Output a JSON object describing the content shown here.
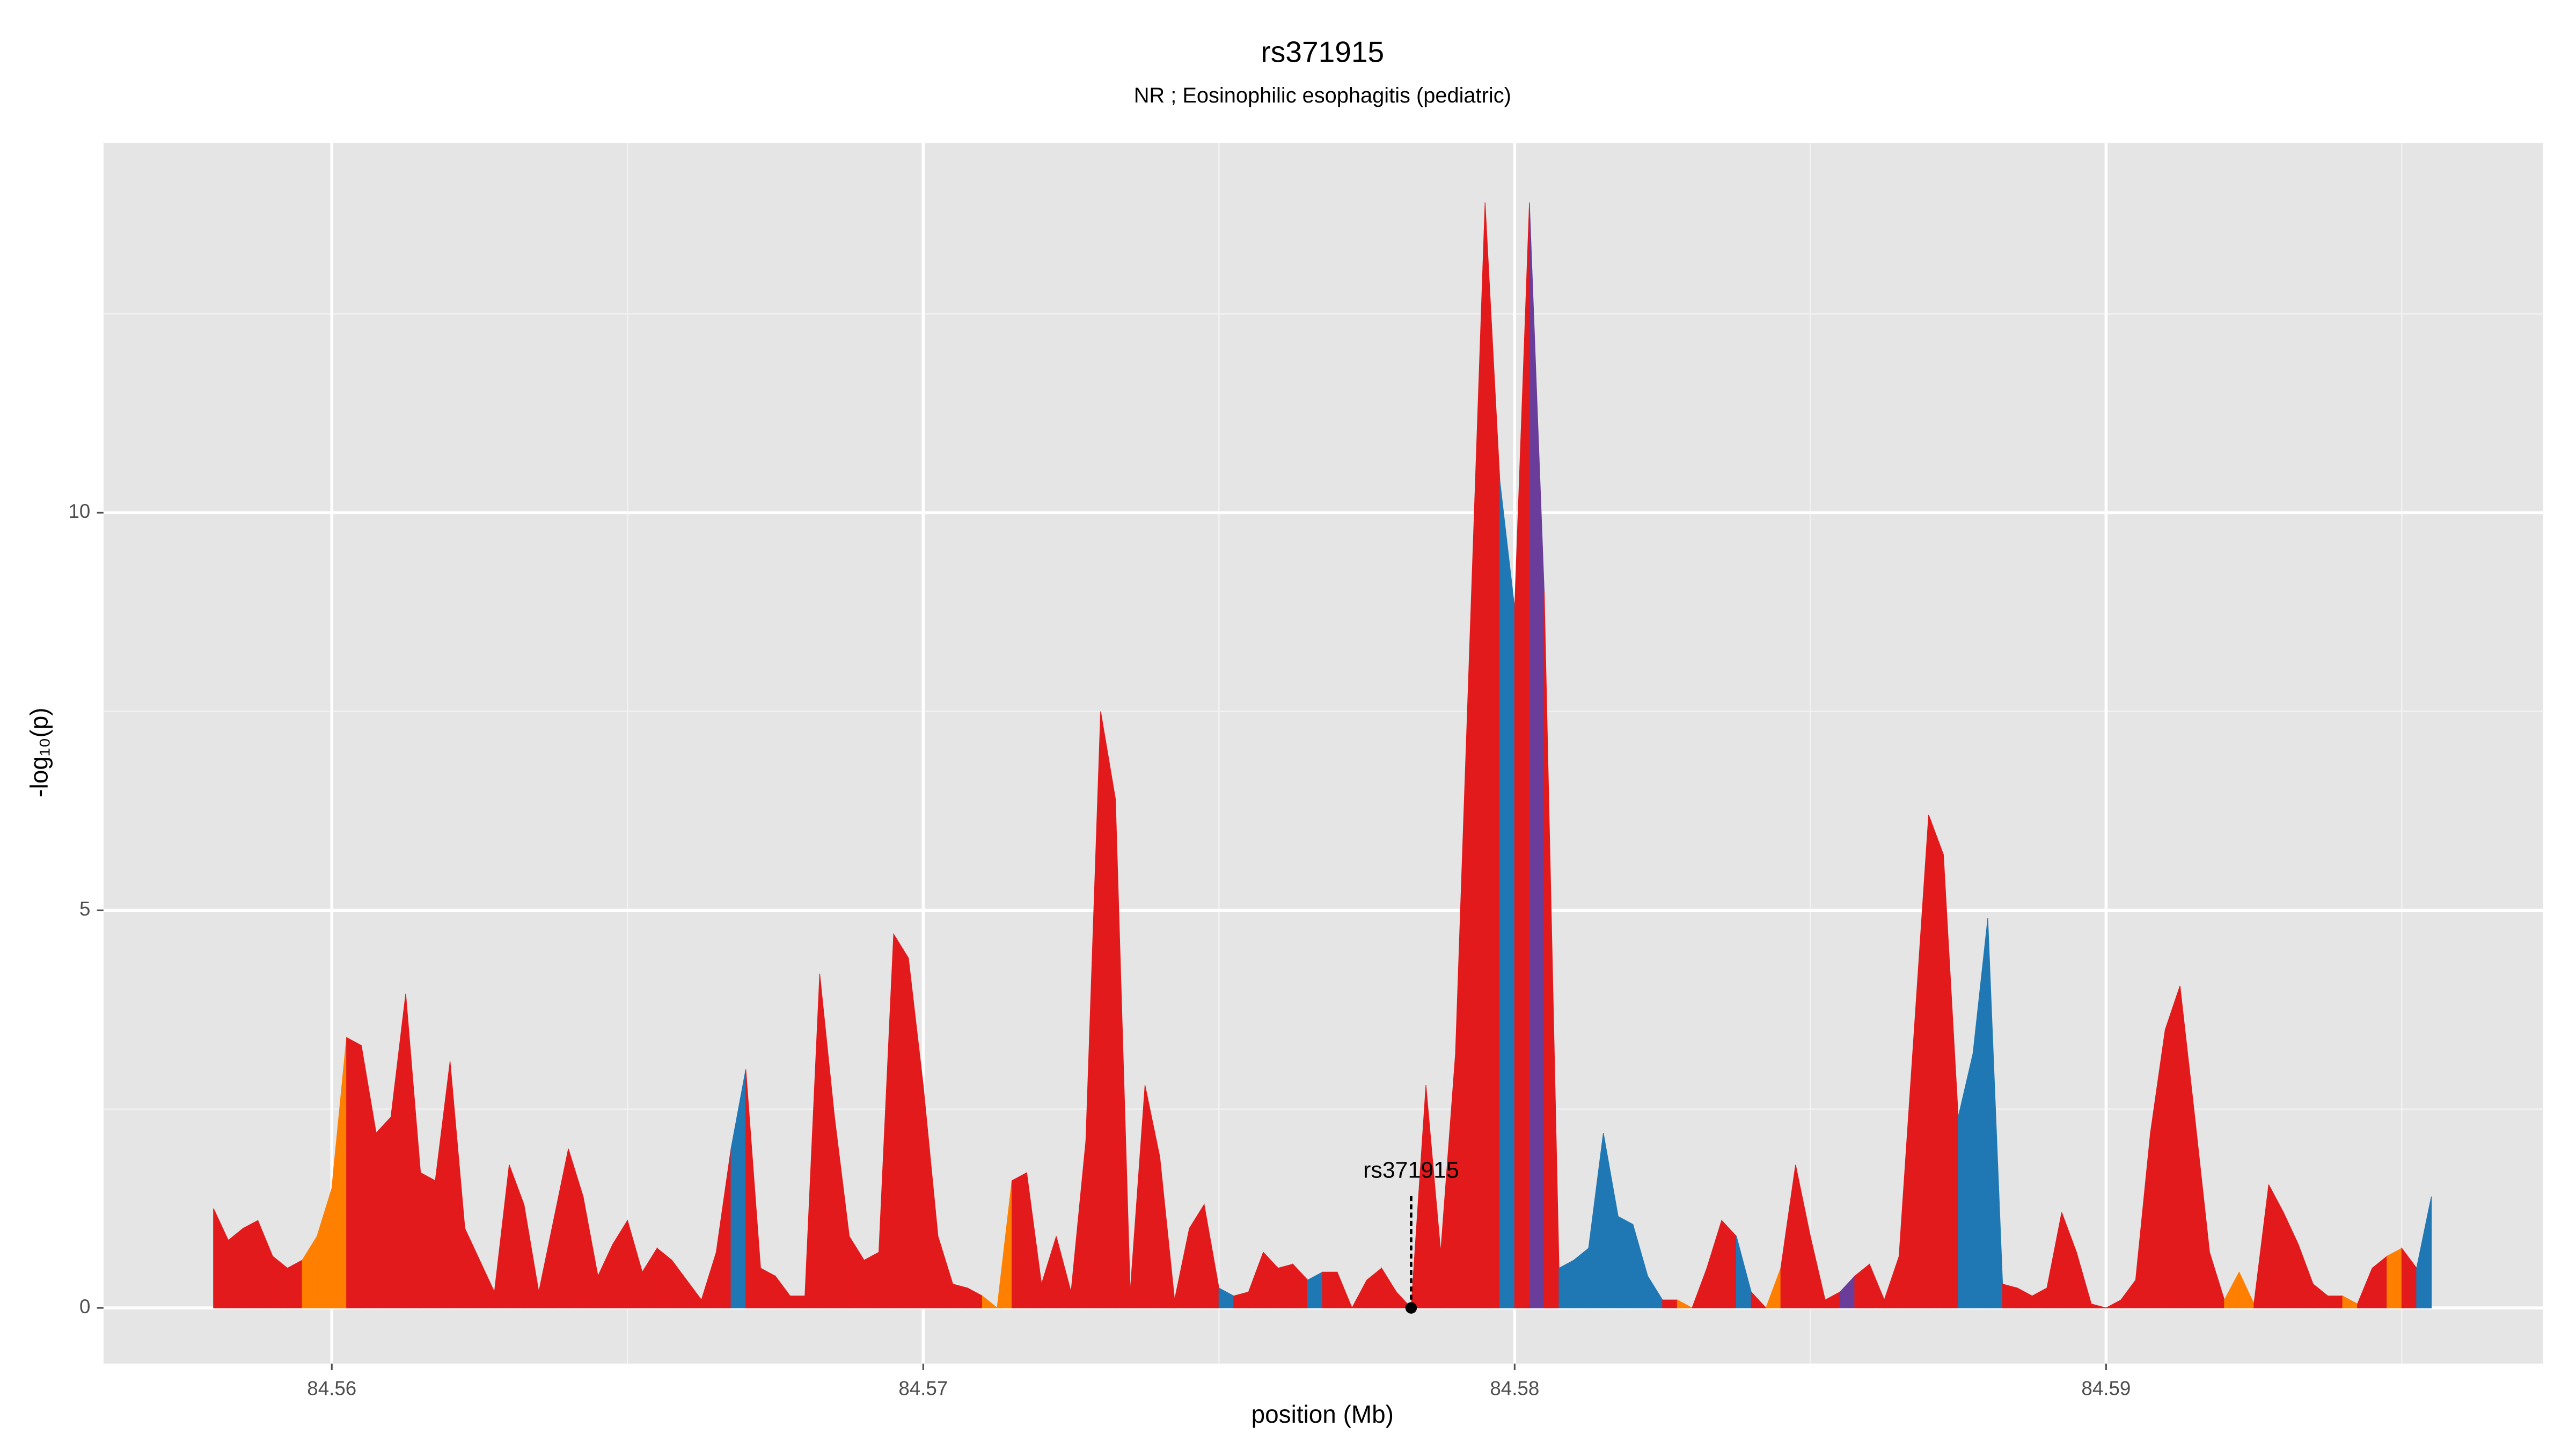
{
  "chart_data": {
    "type": "area",
    "title": "rs371915",
    "subtitle": "NR ; Eosinophilic esophagitis (pediatric)",
    "x_label": "position (Mb)",
    "y_label": "-log₁₀(p)",
    "xlim": [
      84.55614,
      84.59739
    ],
    "ylim": [
      -0.7,
      14.65
    ],
    "xticks": [
      84.56,
      84.57,
      84.58,
      84.59
    ],
    "yticks": [
      0,
      5,
      10
    ],
    "xminorticks": [
      84.565,
      84.575,
      84.585,
      84.595
    ],
    "yminorticks": [
      2.5,
      7.5,
      12.5
    ],
    "grid": true,
    "background": "#e5e5e5",
    "x": [
      84.558,
      84.55825,
      84.5585,
      84.55875,
      84.559,
      84.55925,
      84.5595,
      84.55975,
      84.56,
      84.56025,
      84.5605,
      84.56075,
      84.561,
      84.56125,
      84.5615,
      84.56175,
      84.562,
      84.56225,
      84.56275,
      84.563,
      84.56325,
      84.5635,
      84.56375,
      84.564,
      84.56425,
      84.5645,
      84.56475,
      84.565,
      84.56525,
      84.5655,
      84.56575,
      84.56625,
      84.5665,
      84.56675,
      84.567,
      84.56725,
      84.5675,
      84.56775,
      84.568,
      84.56825,
      84.5685,
      84.56875,
      84.569,
      84.56925,
      84.5695,
      84.56975,
      84.57,
      84.57025,
      84.5705,
      84.57075,
      84.571,
      84.57125,
      84.5715,
      84.57175,
      84.572,
      84.57225,
      84.5725,
      84.57275,
      84.573,
      84.57325,
      84.5735,
      84.57375,
      84.574,
      84.57425,
      84.5745,
      84.57475,
      84.575,
      84.57525,
      84.5755,
      84.57575,
      84.576,
      84.57625,
      84.5765,
      84.57675,
      84.577,
      84.57725,
      84.5775,
      84.57775,
      84.578,
      84.57825,
      84.5785,
      84.57875,
      84.579,
      84.5795,
      84.57975,
      84.58,
      84.58025,
      84.5805,
      84.58075,
      84.581,
      84.58125,
      84.5815,
      84.58175,
      84.582,
      84.58225,
      84.5825,
      84.58275,
      84.583,
      84.58325,
      84.5835,
      84.58375,
      84.584,
      84.58425,
      84.5845,
      84.58475,
      84.585,
      84.58525,
      84.5855,
      84.58575,
      84.586,
      84.58625,
      84.5865,
      84.587,
      84.58725,
      84.5875,
      84.58775,
      84.588,
      84.58825,
      84.5885,
      84.58875,
      84.589,
      84.58925,
      84.5895,
      84.58975,
      84.59,
      84.59025,
      84.5905,
      84.59075,
      84.591,
      84.59125,
      84.5915,
      84.59175,
      84.592,
      84.59225,
      84.5925,
      84.59275,
      84.593,
      84.59325,
      84.5935,
      84.59375,
      84.594,
      84.59425,
      84.5945,
      84.59475,
      84.595,
      84.59525,
      84.5955
    ],
    "values": [
      1.25,
      0.85,
      1.0,
      1.1,
      0.65,
      0.5,
      0.6,
      0.9,
      1.5,
      3.4,
      3.3,
      2.2,
      2.4,
      3.95,
      1.7,
      1.6,
      3.1,
      1.0,
      0.2,
      1.8,
      1.3,
      0.2,
      1.1,
      2.0,
      1.4,
      0.4,
      0.8,
      1.1,
      0.45,
      0.75,
      0.6,
      0.1,
      0.7,
      2.0,
      3.0,
      0.5,
      0.4,
      0.15,
      0.15,
      4.2,
      2.4,
      0.9,
      0.6,
      0.7,
      4.7,
      4.4,
      2.8,
      0.9,
      0.3,
      0.25,
      0.15,
      0.0,
      1.6,
      1.7,
      0.3,
      0.9,
      0.2,
      2.1,
      7.5,
      6.4,
      0.2,
      2.8,
      1.9,
      0.1,
      1.0,
      1.3,
      0.25,
      0.15,
      0.2,
      0.7,
      0.5,
      0.55,
      0.35,
      0.45,
      0.45,
      0.0,
      0.35,
      0.5,
      0.2,
      0.0,
      2.8,
      0.7,
      3.2,
      13.9,
      10.4,
      8.8,
      13.9,
      9.0,
      0.5,
      0.6,
      0.75,
      2.2,
      1.15,
      1.05,
      0.4,
      0.1,
      0.1,
      0.0,
      0.5,
      1.1,
      0.9,
      0.2,
      0.0,
      0.5,
      1.8,
      0.9,
      0.1,
      0.2,
      0.4,
      0.55,
      0.1,
      0.65,
      6.2,
      5.7,
      2.4,
      3.2,
      4.9,
      0.3,
      0.25,
      0.15,
      0.25,
      1.2,
      0.7,
      0.05,
      0.0,
      0.1,
      0.35,
      2.2,
      3.5,
      4.05,
      2.4,
      0.7,
      0.1,
      0.45,
      0.05,
      1.55,
      1.2,
      0.8,
      0.3,
      0.15,
      0.15,
      0.05,
      0.5,
      0.65,
      0.75,
      0.5,
      1.4
    ],
    "colors": [
      "#e31a1c",
      "#e31a1c",
      "#e31a1c",
      "#e31a1c",
      "#e31a1c",
      "#e31a1c",
      "#ff7f00",
      "#ff7f00",
      "#ff7f00",
      "#e31a1c",
      "#e31a1c",
      "#e31a1c",
      "#e31a1c",
      "#e31a1c",
      "#e31a1c",
      "#e31a1c",
      "#e31a1c",
      "#e31a1c",
      "#e31a1c",
      "#e31a1c",
      "#e31a1c",
      "#e31a1c",
      "#e31a1c",
      "#e31a1c",
      "#e31a1c",
      "#e31a1c",
      "#e31a1c",
      "#e31a1c",
      "#e31a1c",
      "#e31a1c",
      "#e31a1c",
      "#e31a1c",
      "#e31a1c",
      "#1f78b4",
      "#e31a1c",
      "#e31a1c",
      "#e31a1c",
      "#e31a1c",
      "#e31a1c",
      "#e31a1c",
      "#e31a1c",
      "#e31a1c",
      "#e31a1c",
      "#e31a1c",
      "#e31a1c",
      "#e31a1c",
      "#e31a1c",
      "#e31a1c",
      "#e31a1c",
      "#e31a1c",
      "#ff7f00",
      "#ff7f00",
      "#e31a1c",
      "#e31a1c",
      "#e31a1c",
      "#e31a1c",
      "#e31a1c",
      "#e31a1c",
      "#e31a1c",
      "#e31a1c",
      "#e31a1c",
      "#e31a1c",
      "#e31a1c",
      "#e31a1c",
      "#e31a1c",
      "#e31a1c",
      "#1f78b4",
      "#e31a1c",
      "#e31a1c",
      "#e31a1c",
      "#e31a1c",
      "#e31a1c",
      "#1f78b4",
      "#e31a1c",
      "#e31a1c",
      "#e31a1c",
      "#e31a1c",
      "#e31a1c",
      "#e31a1c",
      "#e31a1c",
      "#e31a1c",
      "#e31a1c",
      "#e31a1c",
      "#e31a1c",
      "#1f78b4",
      "#e31a1c",
      "#6a3d9a",
      "#e31a1c",
      "#1f78b4",
      "#1f78b4",
      "#1f78b4",
      "#1f78b4",
      "#1f78b4",
      "#1f78b4",
      "#1f78b4",
      "#e31a1c",
      "#ff7f00",
      "#e31a1c",
      "#e31a1c",
      "#e31a1c",
      "#1f78b4",
      "#e31a1c",
      "#ff7f00",
      "#e31a1c",
      "#e31a1c",
      "#e31a1c",
      "#e31a1c",
      "#6a3d9a",
      "#e31a1c",
      "#e31a1c",
      "#e31a1c",
      "#e31a1c",
      "#e31a1c",
      "#e31a1c",
      "#1f78b4",
      "#1f78b4",
      "#1f78b4",
      "#e31a1c",
      "#e31a1c",
      "#e31a1c",
      "#e31a1c",
      "#e31a1c",
      "#e31a1c",
      "#e31a1c",
      "#e31a1c",
      "#e31a1c",
      "#e31a1c",
      "#e31a1c",
      "#e31a1c",
      "#e31a1c",
      "#e31a1c",
      "#e31a1c",
      "#ff7f00",
      "#ff7f00",
      "#e31a1c",
      "#e31a1c",
      "#e31a1c",
      "#e31a1c",
      "#e31a1c",
      "#e31a1c",
      "#ff7f00",
      "#e31a1c",
      "#e31a1c",
      "#ff7f00",
      "#e31a1c",
      "#1f78b4",
      "#e31a1c",
      "#e31a1c"
    ],
    "annotation": {
      "text": "rs371915",
      "x": 84.57825,
      "y": 0
    }
  }
}
